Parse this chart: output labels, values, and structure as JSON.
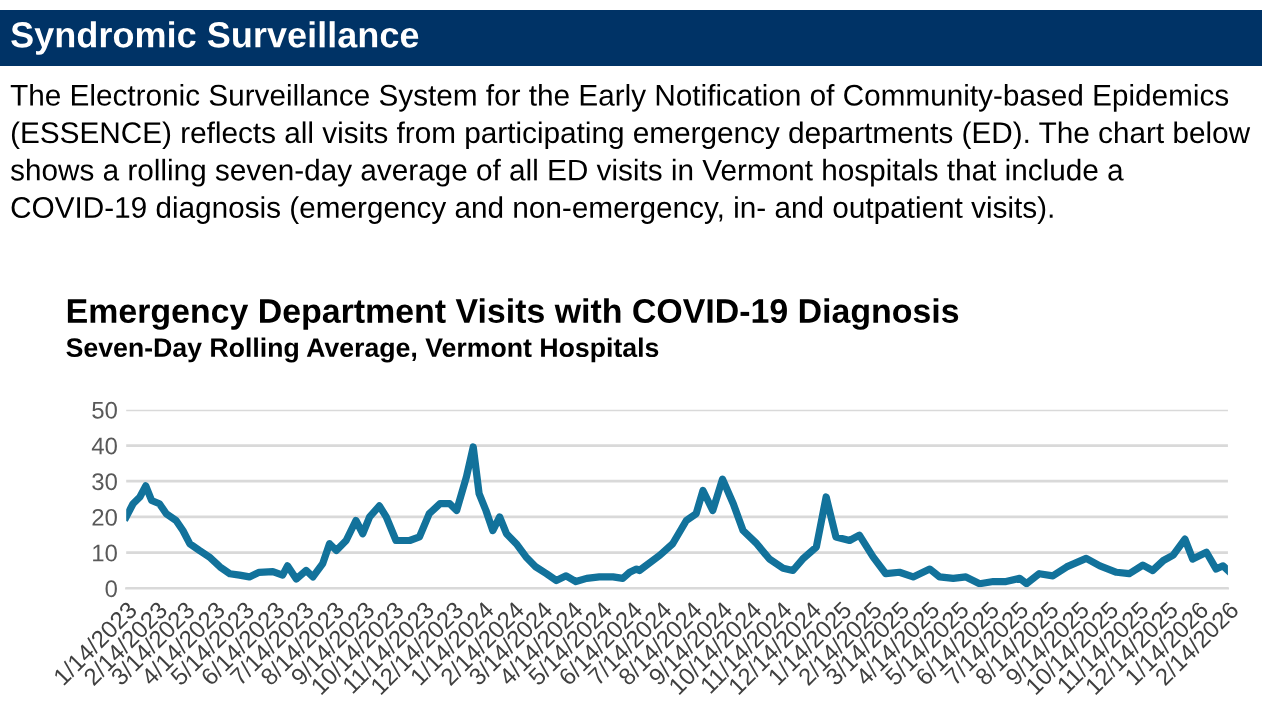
{
  "chart_data": {
    "type": "line",
    "title": "Emergency Department Visits with COVID-19 Diagnosis",
    "subtitle": "Seven-Day Rolling Average, Vermont Hospitals",
    "annotations": [
      "Syndromic Surveillance",
      "The Electronic Surveillance System for the Early Notification of Community-based Epidemics (ESSENCE) reflects all visits from participating emergency departments (ED). The chart below shows a rolling seven-day average of all ED visits in Vermont hospitals that include a COVID-19 diagnosis (emergency and non-emergency, in- and outpatient visits)."
    ],
    "x": [
      "2023-01-14",
      "2023-01-21",
      "2023-01-28",
      "2023-02-03",
      "2023-02-09",
      "2023-02-17",
      "2023-02-24",
      "2023-03-06",
      "2023-03-13",
      "2023-03-20",
      "2023-03-30",
      "2023-04-09",
      "2023-04-20",
      "2023-04-30",
      "2023-05-10",
      "2023-05-20",
      "2023-05-30",
      "2023-06-13",
      "2023-06-23",
      "2023-06-28",
      "2023-07-07",
      "2023-07-17",
      "2023-07-24",
      "2023-08-03",
      "2023-08-10",
      "2023-08-17",
      "2023-08-27",
      "2023-09-06",
      "2023-09-13",
      "2023-09-20",
      "2023-09-30",
      "2023-10-07",
      "2023-10-17",
      "2023-10-31",
      "2023-11-10",
      "2023-11-20",
      "2023-12-01",
      "2023-12-11",
      "2023-12-18",
      "2023-12-28",
      "2024-01-04",
      "2024-01-10",
      "2024-01-17",
      "2024-01-24",
      "2024-01-31",
      "2024-02-07",
      "2024-02-17",
      "2024-02-27",
      "2024-03-08",
      "2024-03-19",
      "2024-03-29",
      "2024-04-08",
      "2024-04-18",
      "2024-04-29",
      "2024-05-12",
      "2024-05-26",
      "2024-06-05",
      "2024-06-12",
      "2024-06-19",
      "2024-06-22",
      "2024-07-13",
      "2024-07-26",
      "2024-08-09",
      "2024-08-19",
      "2024-08-26",
      "2024-09-05",
      "2024-09-15",
      "2024-09-26",
      "2024-10-06",
      "2024-10-20",
      "2024-11-02",
      "2024-11-16",
      "2024-11-26",
      "2024-12-06",
      "2024-12-20",
      "2024-12-30",
      "2025-01-09",
      "2025-01-23",
      "2025-02-02",
      "2025-02-16",
      "2025-03-01",
      "2025-03-15",
      "2025-03-29",
      "2025-04-15",
      "2025-04-25",
      "2025-05-09",
      "2025-05-22",
      "2025-06-05",
      "2025-06-19",
      "2025-07-02",
      "2025-07-16",
      "2025-07-23",
      "2025-08-05",
      "2025-08-19",
      "2025-09-02",
      "2025-09-22",
      "2025-10-06",
      "2025-10-23",
      "2025-11-05",
      "2025-11-19",
      "2025-11-29",
      "2025-12-10",
      "2025-12-20",
      "2026-01-01",
      "2026-01-09",
      "2026-01-23",
      "2026-02-02",
      "2026-02-09",
      "2026-02-14"
    ],
    "series": [
      {
        "color": "#12729b",
        "values": [
          20,
          23.7,
          25.6,
          28.7,
          24.6,
          23.7,
          20.9,
          19,
          16.2,
          12.5,
          10.6,
          8.8,
          6,
          4.1,
          3.7,
          3.2,
          4.5,
          4.7,
          3.7,
          6.3,
          2.6,
          5,
          3.2,
          6.9,
          12.5,
          10.6,
          13.4,
          19,
          15.3,
          20,
          23.1,
          20,
          13.4,
          13.4,
          14.4,
          20.9,
          23.7,
          23.7,
          21.8,
          31.2,
          39.6,
          26.5,
          21.8,
          16.2,
          20,
          15.3,
          12.5,
          8.8,
          6,
          4.1,
          2.2,
          3.5,
          1.9,
          2.8,
          3.2,
          3.2,
          2.8,
          4.5,
          5.4,
          5,
          9.3,
          12.5,
          19,
          20.9,
          27.4,
          21.8,
          30.6,
          23.7,
          16.2,
          12.5,
          8.2,
          5.6,
          5,
          8.2,
          11.6,
          25.6,
          14.4,
          13.4,
          14.9,
          8.8,
          4.1,
          4.5,
          3.2,
          5.4,
          3.2,
          2.8,
          3.2,
          1.3,
          1.9,
          1.9,
          2.8,
          1.3,
          4.1,
          3.5,
          6,
          8.4,
          6.3,
          4.5,
          4.1,
          6.5,
          5,
          7.8,
          9.3,
          13.8,
          8.2,
          10.1,
          5.4,
          6.3,
          5
        ]
      }
    ],
    "xlim": [
      "2023-01-14",
      "2026-02-14"
    ],
    "xticks": [
      {
        "value": "2023-01-14",
        "label": "1/14/2023"
      },
      {
        "value": "2023-02-14",
        "label": "2/14/2023"
      },
      {
        "value": "2023-03-14",
        "label": "3/14/2023"
      },
      {
        "value": "2023-04-14",
        "label": "4/14/2023"
      },
      {
        "value": "2023-05-14",
        "label": "5/14/2023"
      },
      {
        "value": "2023-06-14",
        "label": "6/14/2023"
      },
      {
        "value": "2023-07-14",
        "label": "7/14/2023"
      },
      {
        "value": "2023-08-14",
        "label": "8/14/2023"
      },
      {
        "value": "2023-09-14",
        "label": "9/14/2023"
      },
      {
        "value": "2023-10-14",
        "label": "10/14/2023"
      },
      {
        "value": "2023-11-14",
        "label": "11/14/2023"
      },
      {
        "value": "2023-12-14",
        "label": "12/14/2023"
      },
      {
        "value": "2024-01-14",
        "label": "1/14/2024"
      },
      {
        "value": "2024-02-14",
        "label": "2/14/2024"
      },
      {
        "value": "2024-03-14",
        "label": "3/14/2024"
      },
      {
        "value": "2024-04-14",
        "label": "4/14/2024"
      },
      {
        "value": "2024-05-14",
        "label": "5/14/2024"
      },
      {
        "value": "2024-06-14",
        "label": "6/14/2024"
      },
      {
        "value": "2024-07-14",
        "label": "7/14/2024"
      },
      {
        "value": "2024-08-14",
        "label": "8/14/2024"
      },
      {
        "value": "2024-09-14",
        "label": "9/14/2024"
      },
      {
        "value": "2024-10-14",
        "label": "10/14/2024"
      },
      {
        "value": "2024-11-14",
        "label": "11/14/2024"
      },
      {
        "value": "2024-12-14",
        "label": "12/14/2024"
      },
      {
        "value": "2025-01-14",
        "label": "1/14/2025"
      },
      {
        "value": "2025-02-14",
        "label": "2/14/2025"
      },
      {
        "value": "2025-03-14",
        "label": "3/14/2025"
      },
      {
        "value": "2025-04-14",
        "label": "4/14/2025"
      },
      {
        "value": "2025-05-14",
        "label": "5/14/2025"
      },
      {
        "value": "2025-06-14",
        "label": "6/14/2025"
      },
      {
        "value": "2025-07-14",
        "label": "7/14/2025"
      },
      {
        "value": "2025-08-14",
        "label": "8/14/2025"
      },
      {
        "value": "2025-09-14",
        "label": "9/14/2025"
      },
      {
        "value": "2025-10-14",
        "label": "10/14/2025"
      },
      {
        "value": "2025-11-14",
        "label": "11/14/2025"
      },
      {
        "value": "2025-12-14",
        "label": "12/14/2025"
      },
      {
        "value": "2026-01-14",
        "label": "1/14/2026"
      },
      {
        "value": "2026-02-14",
        "label": "2/14/2026"
      }
    ],
    "ylim": [
      0,
      50
    ],
    "yticks": [
      0,
      10,
      20,
      30,
      40,
      50
    ],
    "grid": "y"
  }
}
